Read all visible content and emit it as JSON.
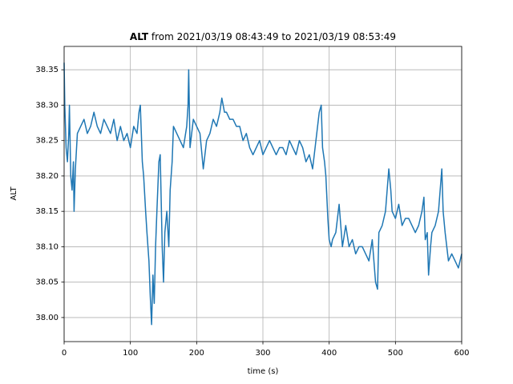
{
  "chart_data": {
    "type": "line",
    "title_bold": "ALT",
    "title": "from 2021/03/19 08:43:49 to 2021/03/19 08:53:49",
    "xlabel": "time (s)",
    "ylabel": "ALT",
    "x": [
      0,
      1,
      3,
      5,
      7,
      8,
      10,
      12,
      14,
      15,
      17,
      20,
      25,
      30,
      35,
      40,
      45,
      50,
      55,
      60,
      65,
      70,
      75,
      80,
      85,
      90,
      95,
      100,
      105,
      110,
      113,
      115,
      118,
      120,
      123,
      125,
      128,
      130,
      132,
      134,
      136,
      138,
      140,
      143,
      145,
      148,
      150,
      152,
      155,
      158,
      160,
      163,
      165,
      170,
      175,
      180,
      185,
      187,
      188,
      190,
      195,
      200,
      205,
      210,
      215,
      220,
      225,
      230,
      235,
      238,
      242,
      245,
      250,
      255,
      260,
      265,
      270,
      275,
      280,
      285,
      290,
      295,
      300,
      305,
      310,
      315,
      320,
      325,
      330,
      335,
      340,
      345,
      350,
      355,
      360,
      365,
      370,
      375,
      380,
      385,
      388,
      390,
      393,
      395,
      398,
      400,
      403,
      405,
      410,
      415,
      420,
      425,
      430,
      435,
      440,
      445,
      450,
      455,
      460,
      465,
      470,
      473,
      475,
      480,
      485,
      490,
      493,
      495,
      500,
      505,
      510,
      515,
      520,
      525,
      530,
      535,
      540,
      543,
      545,
      548,
      550,
      553,
      555,
      560,
      565,
      570,
      572,
      575,
      580,
      585,
      590,
      595,
      600
    ],
    "values": [
      38.36,
      38.3,
      38.24,
      38.22,
      38.26,
      38.3,
      38.2,
      38.18,
      38.22,
      38.15,
      38.21,
      38.26,
      38.27,
      38.28,
      38.26,
      38.27,
      38.29,
      38.27,
      38.26,
      38.28,
      38.27,
      38.26,
      38.28,
      38.25,
      38.27,
      38.25,
      38.26,
      38.24,
      38.27,
      38.26,
      38.29,
      38.3,
      38.22,
      38.2,
      38.15,
      38.12,
      38.08,
      38.03,
      37.99,
      38.06,
      38.02,
      38.1,
      38.15,
      38.22,
      38.23,
      38.1,
      38.05,
      38.12,
      38.15,
      38.1,
      38.18,
      38.22,
      38.27,
      38.26,
      38.25,
      38.24,
      38.27,
      38.3,
      38.35,
      38.24,
      38.28,
      38.27,
      38.26,
      38.21,
      38.25,
      38.26,
      38.28,
      38.27,
      38.29,
      38.31,
      38.29,
      38.29,
      38.28,
      38.28,
      38.27,
      38.27,
      38.25,
      38.26,
      38.24,
      38.23,
      38.24,
      38.25,
      38.23,
      38.24,
      38.25,
      38.24,
      38.23,
      38.24,
      38.24,
      38.23,
      38.25,
      38.24,
      38.23,
      38.25,
      38.24,
      38.22,
      38.23,
      38.21,
      38.25,
      38.29,
      38.3,
      38.24,
      38.22,
      38.2,
      38.14,
      38.11,
      38.1,
      38.11,
      38.12,
      38.16,
      38.1,
      38.13,
      38.1,
      38.11,
      38.09,
      38.1,
      38.1,
      38.09,
      38.08,
      38.11,
      38.05,
      38.04,
      38.12,
      38.13,
      38.15,
      38.21,
      38.18,
      38.15,
      38.14,
      38.16,
      38.13,
      38.14,
      38.14,
      38.13,
      38.12,
      38.13,
      38.15,
      38.17,
      38.11,
      38.12,
      38.06,
      38.1,
      38.12,
      38.13,
      38.15,
      38.21,
      38.15,
      38.12,
      38.08,
      38.09,
      38.08,
      38.07,
      38.09
    ],
    "color": "#1f77b4",
    "xlim": [
      0,
      600
    ],
    "xticks": [
      0,
      100,
      200,
      300,
      400,
      500,
      600
    ],
    "ylim": [
      37.966,
      38.383
    ],
    "yticks": [
      {
        "value": 38.0,
        "label": "38.00"
      },
      38.05,
      {
        "value": 38.1,
        "label": "38.10"
      },
      38.15,
      {
        "value": 38.2,
        "label": "38.20"
      },
      38.25,
      {
        "value": 38.3,
        "label": "38.30"
      },
      38.35
    ],
    "grid": true
  }
}
